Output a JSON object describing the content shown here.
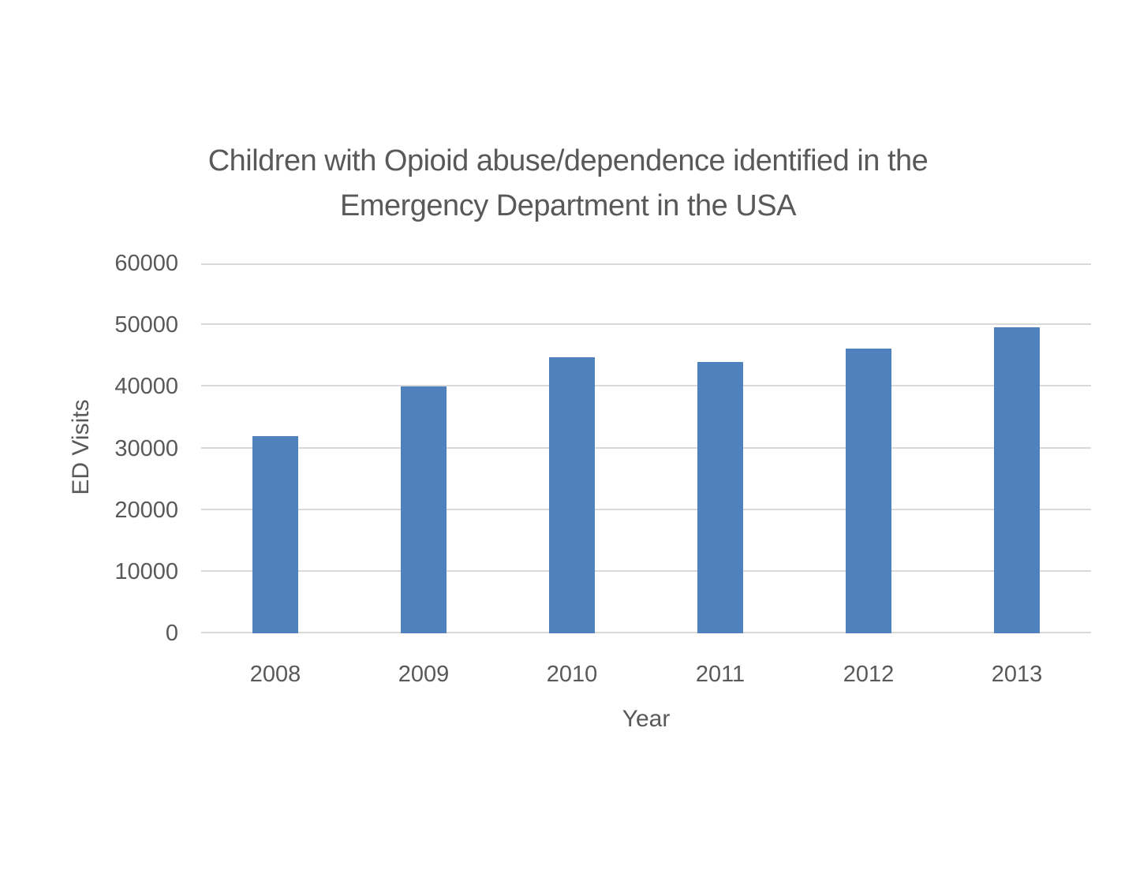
{
  "page": {
    "background": "#ffffff"
  },
  "chart_data": {
    "type": "bar",
    "title": "Children with Opioid abuse/dependence identified in the Emergency Department in the USA",
    "title_lines": [
      "Children with Opioid abuse/dependence identified in the",
      "Emergency Department in the USA"
    ],
    "xlabel": "Year",
    "ylabel": "ED Visits",
    "categories": [
      "2008",
      "2009",
      "2010",
      "2011",
      "2012",
      "2013"
    ],
    "values": [
      32000,
      40100,
      44800,
      44000,
      46200,
      49600
    ],
    "ylim": [
      0,
      60000
    ],
    "yticks": [
      0,
      10000,
      20000,
      30000,
      40000,
      50000,
      60000
    ],
    "ytick_labels": [
      "0",
      "10000",
      "20000",
      "30000",
      "40000",
      "50000",
      "60000"
    ],
    "grid": "horizontal-gridlines",
    "legend": "none",
    "colors": {
      "bar": "#4f81bd",
      "gridline": "#d9d9d9",
      "text": "#595959",
      "background": "#ffffff"
    }
  }
}
